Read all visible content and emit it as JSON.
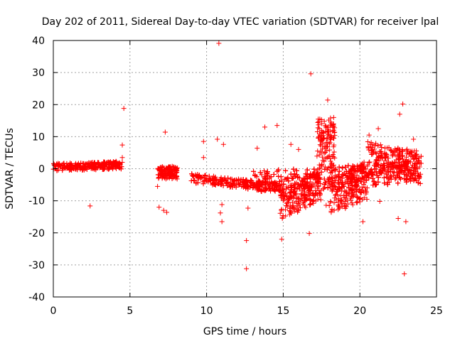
{
  "chart_data": {
    "type": "scatter",
    "title": "Day 202 of 2011, Sidereal Day-to-day VTEC variation (SDTVAR) for receiver lpal",
    "xlabel": "GPS time / hours",
    "ylabel": "SDTVAR / TECUs",
    "xlim": [
      0,
      25
    ],
    "ylim": [
      -40,
      40
    ],
    "xticks": [
      "0",
      "5",
      "10",
      "15",
      "20",
      "25"
    ],
    "yticks": [
      "40",
      "30",
      "20",
      "10",
      "0",
      "-10",
      "-20",
      "-30",
      "-40"
    ],
    "grid": true,
    "marker": "+",
    "color": "#ff0000",
    "series": [
      {
        "name": "lpal",
        "segments": [
          {
            "x_start": 0.0,
            "x_end": 4.5,
            "y_center": 0.8,
            "spread": 1.2,
            "slope": 0.15
          },
          {
            "x_start": 6.8,
            "x_end": 8.1,
            "y_center": -1.2,
            "spread": 2.0,
            "slope": 0
          },
          {
            "x_start": 9.0,
            "x_end": 15.0,
            "y_center": -4.5,
            "spread": 1.5,
            "slope": -0.5
          },
          {
            "x_start": 13.0,
            "x_end": 24.0,
            "y_center": -2.5,
            "spread": 3.5,
            "slope": 0.3
          },
          {
            "x_start": 14.8,
            "x_end": 17.5,
            "y_center": -8.0,
            "spread": 5.0,
            "slope": 2.5
          },
          {
            "x_start": 17.2,
            "x_end": 18.4,
            "y_center": 8.0,
            "spread": 8.0,
            "slope": 0
          },
          {
            "x_start": 18.0,
            "x_end": 20.5,
            "y_center": -6.0,
            "spread": 6.0,
            "slope": 2.0
          },
          {
            "x_start": 20.5,
            "x_end": 24.0,
            "y_center": 2.0,
            "spread": 5.0,
            "slope": -1.0
          }
        ],
        "outliers": [
          [
            10.8,
            39.1
          ],
          [
            16.8,
            29.6
          ],
          [
            17.9,
            21.4
          ],
          [
            4.6,
            18.8
          ],
          [
            22.8,
            20.2
          ],
          [
            22.6,
            17.0
          ],
          [
            7.3,
            11.4
          ],
          [
            14.6,
            13.5
          ],
          [
            13.8,
            13.0
          ],
          [
            9.8,
            8.5
          ],
          [
            10.7,
            9.2
          ],
          [
            11.1,
            7.6
          ],
          [
            4.5,
            7.4
          ],
          [
            13.3,
            6.4
          ],
          [
            23.5,
            9.2
          ],
          [
            2.4,
            -11.6
          ],
          [
            6.9,
            -12.0
          ],
          [
            7.2,
            -13.0
          ],
          [
            7.4,
            -13.6
          ],
          [
            10.9,
            -13.8
          ],
          [
            11.0,
            -16.5
          ],
          [
            12.6,
            -22.4
          ],
          [
            12.6,
            -31.2
          ],
          [
            14.9,
            -22.0
          ],
          [
            16.7,
            -20.2
          ],
          [
            20.2,
            -16.5
          ],
          [
            22.5,
            -15.5
          ],
          [
            23.0,
            -16.5
          ],
          [
            22.9,
            -32.8
          ],
          [
            17.8,
            -11.4
          ],
          [
            19.0,
            -11.8
          ],
          [
            21.3,
            -10.2
          ],
          [
            12.7,
            -12.3
          ],
          [
            11.0,
            -11.2
          ],
          [
            15.5,
            7.6
          ],
          [
            16.0,
            6.0
          ],
          [
            9.8,
            3.5
          ],
          [
            4.5,
            3.5
          ],
          [
            6.8,
            -5.5
          ],
          [
            20.6,
            10.5
          ],
          [
            21.2,
            12.5
          ]
        ]
      }
    ]
  }
}
